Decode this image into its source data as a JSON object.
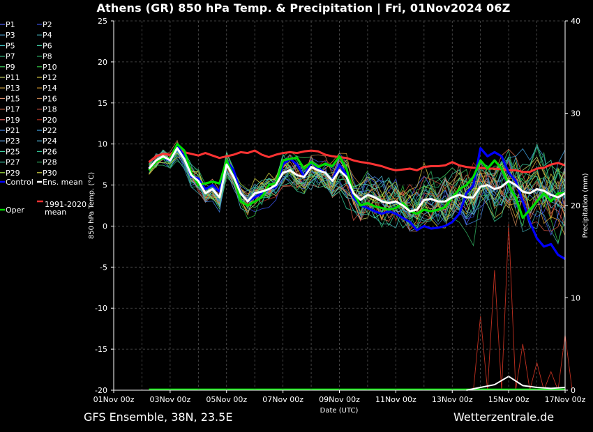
{
  "title": "Athens  (GR)  850 hPa Temp. & Precipitation | Fri, 01Nov2024 06Z",
  "footer": {
    "left": "GFS Ensemble, 38N, 23.5E",
    "right": "Wetterzentrale.de"
  },
  "colors": {
    "background": "#000000",
    "control": "#0000ff",
    "ens_mean": "#ffffff",
    "climate_mean": "#ff3333",
    "oper": "#00dd00"
  },
  "legend": {
    "members": [
      {
        "label": "P1",
        "color": "#5060ff"
      },
      {
        "label": "P2",
        "color": "#3a50e0"
      },
      {
        "label": "P3",
        "color": "#4fa0d0"
      },
      {
        "label": "P4",
        "color": "#40a8b0"
      },
      {
        "label": "P5",
        "color": "#40c0c0"
      },
      {
        "label": "P6",
        "color": "#40c8a0"
      },
      {
        "label": "P7",
        "color": "#40d090"
      },
      {
        "label": "P8",
        "color": "#30c070"
      },
      {
        "label": "P9",
        "color": "#40d060"
      },
      {
        "label": "P10",
        "color": "#30c040"
      },
      {
        "label": "P11",
        "color": "#c0d060"
      },
      {
        "label": "P12",
        "color": "#d0c040"
      },
      {
        "label": "P13",
        "color": "#e0b040"
      },
      {
        "label": "P14",
        "color": "#e0a030"
      },
      {
        "label": "P15",
        "color": "#e09070"
      },
      {
        "label": "P16",
        "color": "#c08050"
      },
      {
        "label": "P17",
        "color": "#e07050"
      },
      {
        "label": "P18",
        "color": "#d05040"
      },
      {
        "label": "P19",
        "color": "#e06060"
      },
      {
        "label": "P20",
        "color": "#b03020"
      },
      {
        "label": "P21",
        "color": "#4080e0"
      },
      {
        "label": "P22",
        "color": "#40a0e0"
      },
      {
        "label": "P23",
        "color": "#60a0e0"
      },
      {
        "label": "P24",
        "color": "#50b0d0"
      },
      {
        "label": "P25",
        "color": "#40d0a0"
      },
      {
        "label": "P26",
        "color": "#30c090"
      },
      {
        "label": "P27",
        "color": "#40d0b0"
      },
      {
        "label": "P28",
        "color": "#30b060"
      },
      {
        "label": "P29",
        "color": "#a0e040"
      },
      {
        "label": "P30",
        "color": "#d0d040"
      }
    ],
    "control": "Control",
    "ens_mean": "Ens. mean",
    "climate_mean": "1991-2020\nmean",
    "oper": "Oper"
  },
  "chart_data": {
    "type": "line",
    "xlabel": "Date (UTC)",
    "ylabel": "850 hPa Temp. (°C)",
    "y2label": "Precipitation (mm)",
    "x_ticks": [
      "01Nov 00z",
      "03Nov 00z",
      "05Nov 00z",
      "07Nov 00z",
      "09Nov 00z",
      "11Nov 00z",
      "13Nov 00z",
      "15Nov 00z",
      "17Nov 00z"
    ],
    "x_range_days": [
      0,
      16
    ],
    "ylim": [
      -20,
      25
    ],
    "y_ticks": [
      25,
      20,
      15,
      10,
      5,
      0,
      -5,
      -10,
      -15,
      -20
    ],
    "y2lim": [
      0,
      40
    ],
    "y2_ticks": [
      40,
      30,
      20,
      10,
      0
    ],
    "grid": true,
    "series": [
      {
        "name": "Control",
        "color": "#0000ff",
        "x": [
          1.25,
          1.5,
          1.75,
          2.0,
          2.25,
          2.5,
          2.75,
          3.0,
          3.25,
          3.5,
          3.75,
          4.0,
          4.25,
          4.5,
          4.75,
          5.0,
          5.25,
          5.5,
          5.75,
          6.0,
          6.25,
          6.5,
          6.75,
          7.0,
          7.25,
          7.5,
          7.75,
          8.0,
          8.25,
          8.5,
          8.75,
          9.0,
          9.25,
          9.5,
          9.75,
          10.0,
          10.25,
          10.5,
          10.75,
          11.0,
          11.25,
          11.5,
          11.75,
          12.0,
          12.25,
          12.5,
          12.75,
          13.0,
          13.25,
          13.5,
          13.75,
          14.0,
          14.25,
          14.5,
          14.75,
          15.0,
          15.25,
          15.5,
          15.75,
          16.0
        ],
        "y": [
          7,
          8,
          8.3,
          8,
          9.8,
          8.5,
          6,
          5.8,
          4.5,
          5,
          4.2,
          8,
          6.8,
          4,
          3,
          3.5,
          4,
          4.5,
          4.8,
          7.5,
          8.2,
          7.5,
          6,
          7.8,
          7,
          6.5,
          5.5,
          7.5,
          6.2,
          3.5,
          2.5,
          2.2,
          1.8,
          1.5,
          1.8,
          1.5,
          1,
          0.5,
          -0.5,
          0,
          -0.3,
          -0.2,
          0,
          0.5,
          1.5,
          4,
          5,
          9.5,
          8.5,
          9,
          8.5,
          6.5,
          5.5,
          3,
          0.5,
          -1.5,
          -2.5,
          -2.2,
          -3.5,
          -4
        ]
      },
      {
        "name": "Ens. mean",
        "color": "#ffffff",
        "x": [
          1.25,
          1.5,
          1.75,
          2.0,
          2.25,
          2.5,
          2.75,
          3.0,
          3.25,
          3.5,
          3.75,
          4.0,
          4.25,
          4.5,
          4.75,
          5.0,
          5.25,
          5.5,
          5.75,
          6.0,
          6.25,
          6.5,
          6.75,
          7.0,
          7.25,
          7.5,
          7.75,
          8.0,
          8.25,
          8.5,
          8.75,
          9.0,
          9.25,
          9.5,
          9.75,
          10.0,
          10.25,
          10.5,
          10.75,
          11.0,
          11.25,
          11.5,
          11.75,
          12.0,
          12.25,
          12.5,
          12.75,
          13.0,
          13.25,
          13.5,
          13.75,
          14.0,
          14.25,
          14.5,
          14.75,
          15.0,
          15.25,
          15.5,
          15.75,
          16.0
        ],
        "y": [
          7,
          8,
          8.5,
          8,
          9.5,
          8.2,
          6.2,
          5.5,
          4,
          4.5,
          3.5,
          7.5,
          6,
          4,
          3,
          4,
          4.2,
          4.5,
          5,
          6.5,
          6.8,
          6.2,
          6,
          7.2,
          6.8,
          6.5,
          5.5,
          6.8,
          6,
          4,
          3.2,
          3.8,
          3.5,
          3,
          2.8,
          3,
          2.5,
          1.8,
          2,
          3.2,
          3.3,
          3,
          3,
          3.5,
          3.8,
          3.5,
          3.5,
          4.8,
          5,
          4.5,
          4.8,
          5.5,
          5,
          4.2,
          4,
          4.5,
          4.3,
          3.8,
          3.5,
          4
        ]
      },
      {
        "name": "1991-2020 mean",
        "color": "#ff3333",
        "x": [
          1.25,
          1.5,
          1.75,
          2.0,
          2.25,
          2.5,
          2.75,
          3.0,
          3.25,
          3.5,
          3.75,
          4.0,
          4.25,
          4.5,
          4.75,
          5.0,
          5.25,
          5.5,
          5.75,
          6.0,
          6.25,
          6.5,
          6.75,
          7.0,
          7.25,
          7.5,
          7.75,
          8.0,
          8.25,
          8.5,
          8.75,
          9.0,
          9.25,
          9.5,
          9.75,
          10.0,
          10.25,
          10.5,
          10.75,
          11.0,
          11.25,
          11.5,
          11.75,
          12.0,
          12.25,
          12.5,
          12.75,
          13.0,
          13.25,
          13.5,
          13.75,
          14.0,
          14.25,
          14.5,
          14.75,
          15.0,
          15.25,
          15.5,
          15.75,
          16.0
        ],
        "y": [
          7.8,
          8.5,
          8.8,
          8.7,
          9.5,
          9,
          8.8,
          8.6,
          8.9,
          8.6,
          8.3,
          8.5,
          8.7,
          9,
          8.9,
          9.2,
          8.7,
          8.4,
          8.7,
          8.9,
          9,
          8.9,
          9.1,
          9.2,
          9.1,
          8.7,
          8.5,
          8.4,
          8.3,
          8,
          7.8,
          7.7,
          7.5,
          7.3,
          7,
          6.8,
          6.9,
          7,
          6.8,
          7.2,
          7.3,
          7.3,
          7.4,
          7.8,
          7.4,
          7.2,
          7.1,
          7.1,
          7,
          7,
          6.9,
          6.8,
          6.8,
          6.6,
          6.6,
          7,
          7.1,
          7.5,
          7.7,
          7.4
        ]
      },
      {
        "name": "Oper",
        "color": "#00dd00",
        "x": [
          1.25,
          1.5,
          1.75,
          2.0,
          2.25,
          2.5,
          2.75,
          3.0,
          3.25,
          3.5,
          3.75,
          4.0,
          4.25,
          4.5,
          4.75,
          5.0,
          5.25,
          5.5,
          5.75,
          6.0,
          6.25,
          6.5,
          6.75,
          7.0,
          7.25,
          7.5,
          7.75,
          8.0,
          8.25,
          8.5,
          8.75,
          9.0,
          9.25,
          9.5,
          9.75,
          10.0,
          10.25,
          10.5,
          10.75,
          11.0,
          11.25,
          11.5,
          11.75,
          12.0,
          12.25,
          12.5,
          12.75,
          13.0,
          13.25,
          13.5,
          13.75,
          14.0,
          14.25,
          14.5,
          14.75,
          15.0,
          15.25,
          15.5,
          15.75,
          16.0
        ],
        "y": [
          6.8,
          7.8,
          8.3,
          8.2,
          10,
          9.2,
          6.5,
          5,
          5.2,
          5.4,
          5.2,
          8,
          6,
          3,
          2.5,
          3,
          3.5,
          5,
          5.2,
          8,
          8.2,
          8.3,
          7,
          7.8,
          7.2,
          7.6,
          7.3,
          8.5,
          7,
          4,
          2.5,
          2.8,
          2.4,
          2.2,
          2,
          2.2,
          2.8,
          1.8,
          1.5,
          2,
          1.8,
          2,
          2.3,
          3.5,
          4.5,
          5,
          6,
          8,
          7,
          8,
          7,
          5,
          3.5,
          1,
          2,
          3,
          4,
          3,
          4,
          4
        ]
      }
    ],
    "precipitation": {
      "x": [
        12.5,
        13.0,
        13.5,
        14.0,
        14.5,
        15.0,
        15.5,
        16.0
      ],
      "mean_mm": [
        0,
        0.3,
        0.6,
        1.5,
        0.5,
        0.3,
        0.2,
        0.3
      ],
      "max_mm": [
        0,
        8,
        13,
        18,
        5,
        3,
        2,
        6
      ]
    }
  }
}
